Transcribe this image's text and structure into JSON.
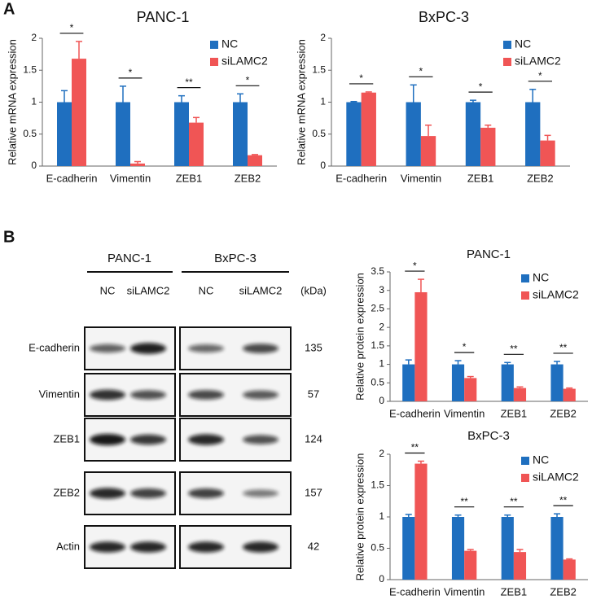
{
  "panel_labels": [
    "A",
    "B"
  ],
  "blot": {
    "groups": [
      "PANC-1",
      "BxPC-3"
    ],
    "lanes": [
      "NC",
      "siLAMC2",
      "NC",
      "siLAMC2"
    ],
    "unit": "(kDa)",
    "proteins": [
      "E-cadherin",
      "Vimentin",
      "ZEB1",
      "ZEB2",
      "Actin"
    ],
    "sizes": [
      "135",
      "57",
      "124",
      "157",
      "42"
    ]
  },
  "chart_data": [
    {
      "type": "bar",
      "title": "PANC-1",
      "ylabel": "Relative mRNA expression",
      "categories": [
        "E-cadherin",
        "Vimentin",
        "ZEB1",
        "ZEB2"
      ],
      "series": [
        {
          "name": "NC",
          "color": "#1f6fbf",
          "values": [
            1,
            1,
            1,
            1
          ],
          "errors": [
            0.18,
            0.25,
            0.1,
            0.13
          ]
        },
        {
          "name": "siLAMC2",
          "color": "#f05555",
          "values": [
            1.68,
            0.04,
            0.68,
            0.17
          ],
          "errors": [
            0.27,
            0.03,
            0.08,
            0.01
          ]
        }
      ],
      "annotations": [
        "*",
        "*",
        "**",
        "*"
      ],
      "ylim": [
        0,
        2
      ],
      "yticks": [
        0,
        0.5,
        1,
        1.5,
        2
      ],
      "legend": "upper right"
    },
    {
      "type": "bar",
      "title": "BxPC-3",
      "ylabel": "Relative mRNA expression",
      "categories": [
        "E-cadherin",
        "Vimentin",
        "ZEB1",
        "ZEB2"
      ],
      "series": [
        {
          "name": "NC",
          "color": "#1f6fbf",
          "values": [
            1,
            1,
            1,
            1
          ],
          "errors": [
            0.01,
            0.27,
            0.03,
            0.2
          ]
        },
        {
          "name": "siLAMC2",
          "color": "#f05555",
          "values": [
            1.15,
            0.47,
            0.6,
            0.4
          ],
          "errors": [
            0.01,
            0.17,
            0.04,
            0.08
          ]
        }
      ],
      "annotations": [
        "*",
        "*",
        "*",
        "*"
      ],
      "ylim": [
        0,
        2
      ],
      "yticks": [
        0,
        0.5,
        1,
        1.5,
        2
      ],
      "legend": "upper right"
    },
    {
      "type": "bar",
      "title": "PANC-1",
      "ylabel": "Relative protein expression",
      "categories": [
        "E-cadherin",
        "Vimentin",
        "ZEB1",
        "ZEB2"
      ],
      "series": [
        {
          "name": "NC",
          "color": "#1f6fbf",
          "values": [
            1,
            1,
            1,
            1
          ],
          "errors": [
            0.12,
            0.1,
            0.05,
            0.08
          ]
        },
        {
          "name": "siLAMC2",
          "color": "#f05555",
          "values": [
            2.95,
            0.63,
            0.36,
            0.34
          ],
          "errors": [
            0.35,
            0.04,
            0.03,
            0.02
          ]
        }
      ],
      "annotations": [
        "*",
        "*",
        "**",
        "**"
      ],
      "ylim": [
        0,
        3.5
      ],
      "yticks": [
        0,
        0.5,
        1,
        1.5,
        2,
        2.5,
        3,
        3.5
      ],
      "legend": "upper right"
    },
    {
      "type": "bar",
      "title": "BxPC-3",
      "ylabel": "Relative protein expression",
      "categories": [
        "E-cadherin",
        "Vimentin",
        "ZEB1",
        "ZEB2"
      ],
      "series": [
        {
          "name": "NC",
          "color": "#1f6fbf",
          "values": [
            1,
            1,
            1,
            1
          ],
          "errors": [
            0.04,
            0.03,
            0.03,
            0.05
          ]
        },
        {
          "name": "siLAMC2",
          "color": "#f05555",
          "values": [
            1.85,
            0.46,
            0.44,
            0.32
          ],
          "errors": [
            0.04,
            0.02,
            0.04,
            0.01
          ]
        }
      ],
      "annotations": [
        "**",
        "**",
        "**",
        "**"
      ],
      "ylim": [
        0,
        2
      ],
      "yticks": [
        0,
        0.5,
        1,
        1.5,
        2
      ],
      "legend": "upper right"
    }
  ]
}
